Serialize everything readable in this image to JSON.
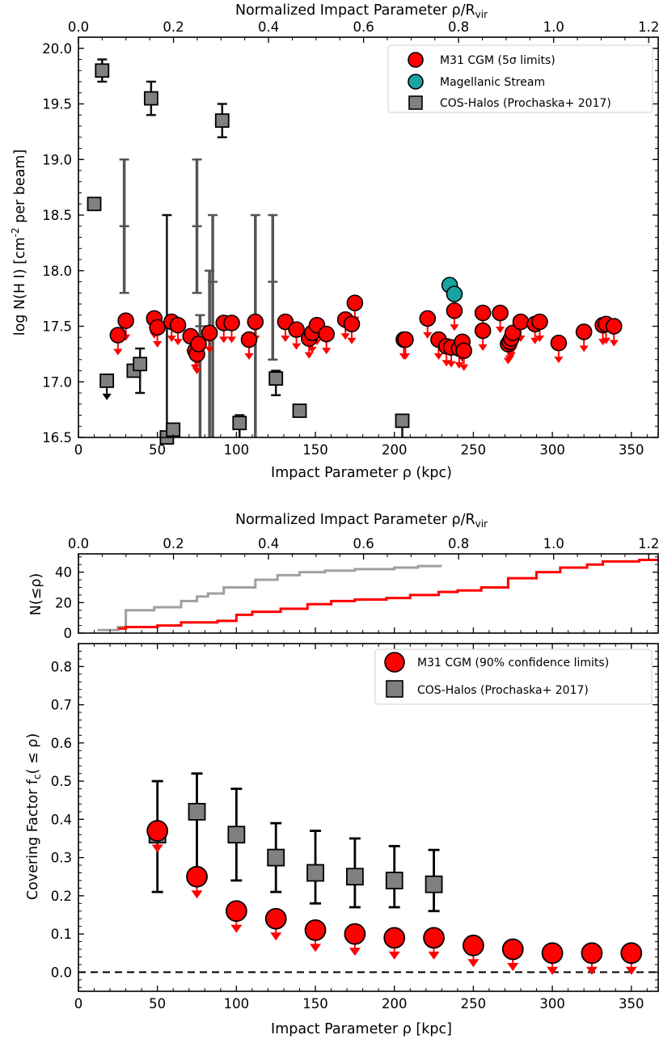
{
  "chart_data": [
    {
      "type": "scatter",
      "xlabel": "Impact Parameter ρ (kpc)",
      "ylabel": "log N(H I) [cm⁻² per beam]",
      "top_xlabel": "Normalized Impact Parameter ρ/R_vir",
      "xlim": [
        0,
        367
      ],
      "ylim": [
        16.5,
        20.1
      ],
      "top_xlim": [
        0,
        1.22
      ],
      "xticks": [
        0,
        50,
        100,
        150,
        200,
        250,
        300,
        350
      ],
      "yticks": [
        16.5,
        17.0,
        17.5,
        18.0,
        18.5,
        19.0,
        19.5,
        20.0
      ],
      "top_xticks": [
        0.0,
        0.2,
        0.4,
        0.6,
        0.8,
        1.0,
        1.2
      ],
      "legend_position": "top-right",
      "legend": [
        "M31 CGM (5σ limits)",
        "Magellanic Stream",
        "COS-Halos (Prochaska+ 2017)"
      ],
      "series": [
        {
          "name": "M31 CGM (5σ limits)",
          "marker": "circle",
          "color": "#ff0000",
          "upper_limit": true,
          "points": [
            [
              25,
              17.42
            ],
            [
              30,
              17.55
            ],
            [
              48,
              17.57
            ],
            [
              50,
              17.49
            ],
            [
              59,
              17.54
            ],
            [
              63,
              17.51
            ],
            [
              71,
              17.41
            ],
            [
              74,
              17.28
            ],
            [
              75,
              17.25
            ],
            [
              76,
              17.34
            ],
            [
              83,
              17.44
            ],
            [
              92,
              17.53
            ],
            [
              97,
              17.53
            ],
            [
              108,
              17.38
            ],
            [
              112,
              17.54
            ],
            [
              131,
              17.54
            ],
            [
              138,
              17.47
            ],
            [
              146,
              17.39
            ],
            [
              148,
              17.44
            ],
            [
              151,
              17.51
            ],
            [
              157,
              17.43
            ],
            [
              169,
              17.56
            ],
            [
              173,
              17.52
            ],
            [
              175,
              17.71
            ],
            [
              206,
              17.38
            ],
            [
              207,
              17.38
            ],
            [
              221,
              17.57
            ],
            [
              228,
              17.38
            ],
            [
              233,
              17.32
            ],
            [
              236,
              17.31
            ],
            [
              238,
              17.64
            ],
            [
              241,
              17.3
            ],
            [
              243,
              17.36
            ],
            [
              244,
              17.28
            ],
            [
              256,
              17.62
            ],
            [
              256,
              17.46
            ],
            [
              267,
              17.62
            ],
            [
              272,
              17.34
            ],
            [
              273,
              17.36
            ],
            [
              274,
              17.39
            ],
            [
              275,
              17.44
            ],
            [
              280,
              17.54
            ],
            [
              289,
              17.52
            ],
            [
              292,
              17.54
            ],
            [
              304,
              17.35
            ],
            [
              320,
              17.45
            ],
            [
              332,
              17.51
            ],
            [
              334,
              17.52
            ],
            [
              339,
              17.5
            ]
          ]
        },
        {
          "name": "Magellanic Stream",
          "marker": "circle",
          "color": "#1aa3a3",
          "points": [
            [
              235,
              17.87
            ],
            [
              238,
              17.79
            ]
          ]
        },
        {
          "name": "COS-Halos (Prochaska+ 2017)",
          "marker": "square",
          "color": "#808080",
          "points": [
            {
              "x": 10,
              "y": 18.6
            },
            {
              "x": 18,
              "y": 17.01,
              "upper_limit": true
            },
            {
              "x": 29,
              "y": 18.4,
              "ylo": 17.8,
              "yhi": 19.0,
              "no_marker": true
            },
            {
              "x": 35,
              "y": 17.1
            },
            {
              "x": 39,
              "y": 17.16,
              "ylo": 16.9,
              "yhi": 17.3
            },
            {
              "x": 56,
              "y": 16.5,
              "ylo": 16.5,
              "yhi": 18.5
            },
            {
              "x": 60,
              "y": 16.57
            },
            {
              "x": 75,
              "y": 18.4,
              "ylo": 17.8,
              "yhi": 19.0,
              "no_marker": true
            },
            {
              "x": 77,
              "y": 17.5,
              "ylo": 16.5,
              "yhi": 17.6,
              "no_marker": true
            },
            {
              "x": 83,
              "y": 17.5,
              "ylo": 16.5,
              "yhi": 18.0,
              "no_marker": true
            },
            {
              "x": 85,
              "y": 17.9,
              "ylo": 16.5,
              "yhi": 18.5,
              "no_marker": true
            },
            {
              "x": 91,
              "y": 19.35,
              "ylo": 19.2,
              "yhi": 19.5
            },
            {
              "x": 102,
              "y": 16.63,
              "ylo": 16.5,
              "yhi": 16.7
            },
            {
              "x": 112,
              "y": 17.5,
              "ylo": 16.5,
              "yhi": 18.5,
              "no_marker": true
            },
            {
              "x": 123,
              "y": 17.9,
              "ylo": 17.2,
              "yhi": 18.5,
              "no_marker": true
            },
            {
              "x": 125,
              "y": 17.03,
              "ylo": 16.88,
              "yhi": 17.1
            },
            {
              "x": 140,
              "y": 16.74
            },
            {
              "x": 205,
              "y": 16.65,
              "ylo": 16.5,
              "yhi": 16.7
            },
            {
              "x": 15,
              "y": 19.8,
              "ylo": 19.7,
              "yhi": 19.9
            },
            {
              "x": 46,
              "y": 19.55,
              "ylo": 19.4,
              "yhi": 19.7
            }
          ]
        }
      ]
    },
    {
      "type": "line",
      "ylabel": "N(≤ρ)",
      "top_xlabel": "Normalized Impact Parameter ρ/R_vir",
      "xlim": [
        0,
        367
      ],
      "ylim": [
        0,
        52
      ],
      "yticks": [
        0,
        20,
        40
      ],
      "top_xticks": [
        0.0,
        0.2,
        0.4,
        0.6,
        0.8,
        1.0,
        1.2
      ],
      "series": [
        {
          "color": "#a0a0a0",
          "step": true,
          "x": [
            12,
            25,
            30,
            48,
            65,
            75,
            82,
            92,
            112,
            126,
            140,
            156,
            175,
            200,
            215,
            230
          ],
          "y": [
            2,
            4,
            15,
            17,
            21,
            24,
            26,
            30,
            35,
            38,
            40,
            41,
            42,
            43,
            44,
            44
          ]
        },
        {
          "color": "#ff0000",
          "step": true,
          "x": [
            25,
            30,
            50,
            65,
            88,
            100,
            110,
            128,
            145,
            160,
            175,
            195,
            210,
            228,
            240,
            255,
            272,
            290,
            305,
            322,
            332,
            355,
            367
          ],
          "y": [
            3,
            4,
            5,
            7,
            8,
            12,
            14,
            16,
            19,
            21,
            22,
            23,
            25,
            27,
            28,
            30,
            36,
            40,
            43,
            45,
            47,
            48,
            48
          ]
        }
      ]
    },
    {
      "type": "scatter",
      "xlabel": "Impact Parameter ρ [kpc]",
      "ylabel": "Covering Factor f_c(≤ρ)",
      "xlim": [
        0,
        367
      ],
      "ylim": [
        -0.05,
        0.86
      ],
      "xticks": [
        0,
        50,
        100,
        150,
        200,
        250,
        300,
        350
      ],
      "yticks": [
        0.0,
        0.1,
        0.2,
        0.3,
        0.4,
        0.5,
        0.6,
        0.7,
        0.8
      ],
      "reference_line": {
        "y": 0.0,
        "style": "dashed"
      },
      "legend_position": "top-right",
      "legend": [
        "M31 CGM (90% confidence limits)",
        "COS-Halos (Prochaska+ 2017)"
      ],
      "series": [
        {
          "name": "M31 CGM (90% confidence limits)",
          "marker": "circle",
          "color": "#ff0000",
          "upper_limit": true,
          "x": [
            50,
            75,
            100,
            125,
            150,
            175,
            200,
            225,
            250,
            275,
            300,
            325,
            350
          ],
          "y": [
            0.37,
            0.25,
            0.16,
            0.14,
            0.11,
            0.1,
            0.09,
            0.09,
            0.07,
            0.06,
            0.05,
            0.05,
            0.05
          ]
        },
        {
          "name": "COS-Halos (Prochaska+ 2017)",
          "marker": "square",
          "color": "#808080",
          "x": [
            50,
            75,
            100,
            125,
            150,
            175,
            200,
            225
          ],
          "y": [
            0.36,
            0.42,
            0.36,
            0.3,
            0.26,
            0.25,
            0.24,
            0.23
          ],
          "ylo": [
            0.21,
            0.25,
            0.24,
            0.21,
            0.18,
            0.17,
            0.17,
            0.16
          ],
          "yhi": [
            0.5,
            0.52,
            0.48,
            0.39,
            0.37,
            0.35,
            0.33,
            0.32
          ]
        }
      ]
    }
  ]
}
